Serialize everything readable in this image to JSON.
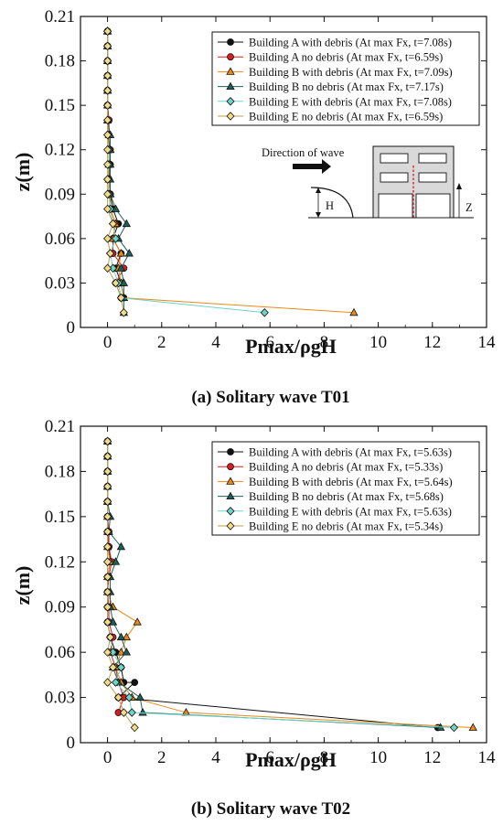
{
  "chart_data": [
    {
      "type": "line",
      "caption": "(a) Solitary wave T01",
      "xlabel": "Pmax/ρgH",
      "ylabel": "z(m)",
      "xlim": [
        -1,
        14
      ],
      "ylim": [
        0,
        0.21
      ],
      "xticks": [
        "0",
        "2",
        "4",
        "6",
        "8",
        "10",
        "12",
        "14"
      ],
      "yticks": [
        "0",
        "0.03",
        "0.06",
        "0.09",
        "0.12",
        "0.15",
        "0.18",
        "0.21"
      ],
      "grid": false,
      "legend": "top-right",
      "series": [
        {
          "name": "Building A with debris (At max Fx, t=7.08s)",
          "color": "#111111",
          "marker": "circle",
          "x": [
            0.0,
            0.0,
            0.0,
            0.0,
            0.0,
            0.0,
            0.05,
            0.05,
            0.05,
            0.1,
            0.05,
            0.1,
            0.2,
            0.4,
            0.2,
            0.5,
            0.3,
            0.5,
            0.6
          ],
          "y": [
            0.2,
            0.19,
            0.18,
            0.17,
            0.16,
            0.15,
            0.14,
            0.13,
            0.12,
            0.11,
            0.1,
            0.09,
            0.08,
            0.07,
            0.06,
            0.05,
            0.04,
            0.03,
            0.02
          ]
        },
        {
          "name": "Building A no debris (At max Fx, t=6.59s)",
          "color": "#d62020",
          "marker": "circle",
          "x": [
            0.0,
            0.0,
            0.0,
            0.0,
            0.0,
            0.0,
            0.05,
            0.05,
            0.1,
            0.05,
            0.05,
            0.1,
            0.1,
            0.3,
            0.2,
            0.2,
            0.6,
            0.3,
            0.5
          ],
          "y": [
            0.2,
            0.19,
            0.18,
            0.17,
            0.16,
            0.15,
            0.14,
            0.13,
            0.12,
            0.11,
            0.1,
            0.09,
            0.08,
            0.07,
            0.06,
            0.05,
            0.04,
            0.03,
            0.02
          ]
        },
        {
          "name": "Building B with debris (At max Fx, t=7.09s)",
          "color": "#e88a1a",
          "marker": "triangle",
          "x": [
            0.0,
            0.0,
            0.0,
            0.0,
            0.0,
            0.0,
            0.0,
            0.05,
            0.1,
            0.05,
            0.05,
            0.1,
            0.1,
            0.3,
            0.2,
            0.5,
            0.4,
            0.5,
            0.6,
            9.1
          ],
          "y": [
            0.2,
            0.19,
            0.18,
            0.17,
            0.16,
            0.15,
            0.14,
            0.13,
            0.12,
            0.11,
            0.1,
            0.09,
            0.08,
            0.07,
            0.06,
            0.05,
            0.04,
            0.03,
            0.02,
            0.01
          ]
        },
        {
          "name": "Building B no debris (At max Fx, t=7.17s)",
          "color": "#1f5f5a",
          "marker": "triangle",
          "x": [
            0.0,
            0.0,
            0.0,
            0.0,
            0.0,
            0.0,
            0.0,
            0.1,
            0.1,
            0.1,
            0.1,
            0.1,
            0.3,
            0.7,
            0.4,
            0.8,
            0.5,
            0.6,
            0.6,
            0.6
          ],
          "y": [
            0.2,
            0.19,
            0.18,
            0.17,
            0.16,
            0.15,
            0.14,
            0.13,
            0.12,
            0.11,
            0.1,
            0.09,
            0.08,
            0.07,
            0.06,
            0.05,
            0.04,
            0.03,
            0.02,
            0.01
          ]
        },
        {
          "name": "Building E with debris (At max Fx, t=7.08s)",
          "color": "#6fd3c5",
          "marker": "diamond",
          "x": [
            0.0,
            0.0,
            0.0,
            0.0,
            0.0,
            0.0,
            0.0,
            0.0,
            0.05,
            0.05,
            0.0,
            0.05,
            0.1,
            0.2,
            0.3,
            0.1,
            0.2,
            0.4,
            0.5,
            5.8
          ],
          "y": [
            0.2,
            0.19,
            0.18,
            0.17,
            0.16,
            0.15,
            0.14,
            0.13,
            0.12,
            0.11,
            0.1,
            0.09,
            0.08,
            0.07,
            0.06,
            0.05,
            0.04,
            0.03,
            0.02,
            0.01
          ]
        },
        {
          "name": "Building E no debris (At max Fx, t=6.59s)",
          "color": "#f2dc8a",
          "marker": "diamond",
          "x": [
            0.0,
            0.0,
            0.0,
            0.0,
            0.0,
            0.0,
            0.0,
            0.0,
            0.0,
            0.0,
            0.0,
            0.0,
            0.0,
            0.2,
            0.0,
            0.1,
            0.0,
            0.3,
            0.5,
            0.6
          ],
          "y": [
            0.2,
            0.19,
            0.18,
            0.17,
            0.16,
            0.15,
            0.14,
            0.13,
            0.12,
            0.11,
            0.1,
            0.09,
            0.08,
            0.07,
            0.06,
            0.05,
            0.04,
            0.03,
            0.02,
            0.01
          ]
        }
      ],
      "inset": {
        "direction_label": "Direction of wave",
        "height_label": "H",
        "z_label": "Z"
      }
    },
    {
      "type": "line",
      "caption": "(b) Solitary wave T02",
      "xlabel": "Pmax/ρgH",
      "ylabel": "z(m)",
      "xlim": [
        -1,
        14
      ],
      "ylim": [
        0,
        0.21
      ],
      "xticks": [
        "0",
        "2",
        "4",
        "6",
        "8",
        "10",
        "12",
        "14"
      ],
      "yticks": [
        "0",
        "0.03",
        "0.06",
        "0.09",
        "0.12",
        "0.15",
        "0.18",
        "0.21"
      ],
      "grid": false,
      "legend": "top-right",
      "series": [
        {
          "name": "Building A with debris (At max Fx, t=5.63s)",
          "color": "#111111",
          "marker": "circle",
          "x": [
            0.0,
            0.0,
            0.0,
            0.0,
            0.0,
            0.0,
            0.0,
            0.05,
            0.1,
            0.0,
            0.0,
            0.0,
            0.0,
            0.1,
            0.3,
            0.5,
            0.6,
            1.0,
            0.4,
            12.2
          ],
          "y": [
            0.2,
            0.19,
            0.18,
            0.17,
            0.16,
            0.15,
            0.14,
            0.13,
            0.12,
            0.11,
            0.1,
            0.09,
            0.08,
            0.07,
            0.06,
            0.05,
            0.04,
            0.04,
            0.03,
            0.01
          ]
        },
        {
          "name": "Building A no debris (At max Fx, t=5.33s)",
          "color": "#d62020",
          "marker": "circle",
          "x": [
            0.0,
            0.0,
            0.0,
            0.0,
            0.0,
            0.0,
            0.05,
            0.05,
            0.15,
            0.05,
            0.0,
            0.05,
            0.05,
            0.2,
            0.1,
            0.3,
            0.4,
            0.6,
            0.4
          ],
          "y": [
            0.2,
            0.19,
            0.18,
            0.17,
            0.16,
            0.15,
            0.14,
            0.13,
            0.12,
            0.11,
            0.1,
            0.09,
            0.08,
            0.07,
            0.06,
            0.05,
            0.04,
            0.03,
            0.02
          ]
        },
        {
          "name": "Building B with debris (At max Fx, t=5.64s)",
          "color": "#e88a1a",
          "marker": "triangle",
          "x": [
            0.0,
            0.0,
            0.0,
            0.0,
            0.0,
            0.0,
            0.0,
            0.0,
            0.1,
            0.0,
            0.0,
            0.2,
            1.1,
            0.7,
            0.5,
            0.3,
            0.5,
            0.9,
            2.9,
            13.5
          ],
          "y": [
            0.2,
            0.19,
            0.18,
            0.17,
            0.16,
            0.15,
            0.14,
            0.13,
            0.12,
            0.11,
            0.1,
            0.09,
            0.08,
            0.07,
            0.06,
            0.05,
            0.04,
            0.03,
            0.02,
            0.01
          ]
        },
        {
          "name": "Building B no debris (At max Fx, t=5.68s)",
          "color": "#1f5f5a",
          "marker": "triangle",
          "x": [
            0.0,
            0.0,
            0.0,
            0.0,
            0.0,
            0.1,
            0.05,
            0.5,
            0.3,
            0.1,
            0.1,
            0.1,
            0.2,
            0.5,
            0.7,
            0.2,
            0.4,
            1.2,
            1.3,
            12.3
          ],
          "y": [
            0.2,
            0.19,
            0.18,
            0.17,
            0.16,
            0.15,
            0.14,
            0.13,
            0.12,
            0.11,
            0.1,
            0.09,
            0.08,
            0.07,
            0.06,
            0.05,
            0.04,
            0.03,
            0.02,
            0.01
          ]
        },
        {
          "name": "Building E with debris (At max Fx, t=5.63s)",
          "color": "#6fd3c5",
          "marker": "diamond",
          "x": [
            0.0,
            0.0,
            0.0,
            0.0,
            0.0,
            0.0,
            0.0,
            0.0,
            0.0,
            0.0,
            0.0,
            0.0,
            0.0,
            0.1,
            0.2,
            0.5,
            0.3,
            0.8,
            0.9,
            12.8
          ],
          "y": [
            0.2,
            0.19,
            0.18,
            0.17,
            0.16,
            0.15,
            0.14,
            0.13,
            0.12,
            0.11,
            0.1,
            0.09,
            0.08,
            0.07,
            0.06,
            0.05,
            0.04,
            0.03,
            0.02,
            0.01
          ]
        },
        {
          "name": "Building E no debris (At max Fx, t=5.34s)",
          "color": "#f2dc8a",
          "marker": "diamond",
          "x": [
            0.0,
            0.0,
            0.0,
            0.0,
            0.0,
            0.0,
            0.0,
            0.0,
            0.0,
            0.0,
            0.0,
            0.0,
            0.0,
            0.1,
            0.0,
            0.2,
            0.0,
            0.4,
            0.6,
            1.0
          ],
          "y": [
            0.2,
            0.19,
            0.18,
            0.17,
            0.16,
            0.15,
            0.14,
            0.13,
            0.12,
            0.11,
            0.1,
            0.09,
            0.08,
            0.07,
            0.06,
            0.05,
            0.04,
            0.03,
            0.02,
            0.01
          ]
        }
      ]
    }
  ]
}
